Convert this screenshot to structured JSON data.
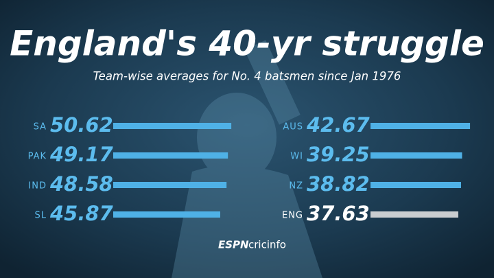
{
  "chart_data": {
    "type": "bar",
    "orientation": "horizontal",
    "title": "England's 40-yr struggle",
    "subtitle": "Team-wise averages for No. 4 batsmen since Jan 1976",
    "categories": [
      "SA",
      "PAK",
      "IND",
      "SL",
      "AUS",
      "WI",
      "NZ",
      "ENG"
    ],
    "values": [
      50.62,
      49.17,
      48.58,
      45.87,
      42.67,
      39.25,
      38.82,
      37.63
    ],
    "colors": [
      "#4fb1e6",
      "#4fb1e6",
      "#4fb1e6",
      "#4fb1e6",
      "#4fb1e6",
      "#4fb1e6",
      "#4fb1e6",
      "#c9cdd0"
    ],
    "logo": {
      "brand": "ESPN",
      "name": "cricinfo"
    }
  }
}
